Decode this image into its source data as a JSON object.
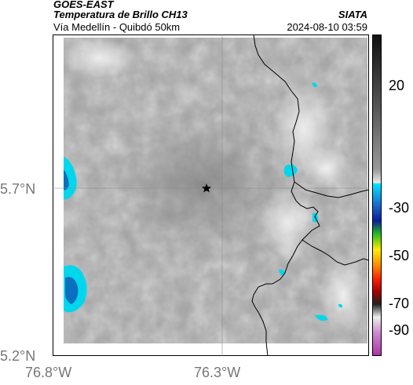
{
  "header": {
    "satellite": "GOES-EAST",
    "product": "Temperatura de Brillo CH13",
    "region": "Vía Medellín - Quibdó 50km",
    "organization": "SIATA",
    "timestamp": "2024-08-10 03:59"
  },
  "axes": {
    "y_ticks": [
      "5.7°N",
      "5.2°N"
    ],
    "x_ticks": [
      "76.8°W",
      "76.3°W"
    ]
  },
  "colorbar": {
    "tick_labels": [
      "20",
      "-30",
      "-50",
      "-70",
      "-90"
    ],
    "colors": [
      "#111111",
      "#555555",
      "#9a9a9a",
      "#e8e8e8",
      "#00e5ff",
      "#0a1e9a",
      "#22bb22",
      "#ffee00",
      "#ff4400",
      "#aa0000",
      "#333333",
      "#eeeeee",
      "#cc44cc"
    ]
  },
  "map": {
    "marker_icon": "star-icon",
    "colors": {
      "cloud_gray": "#9d9d9d",
      "cold_cloud_cyan": "#00d7ec",
      "cold_cloud_blue": "#0a6fbf",
      "border_line": "#000000",
      "grid_line": "#888888"
    }
  }
}
